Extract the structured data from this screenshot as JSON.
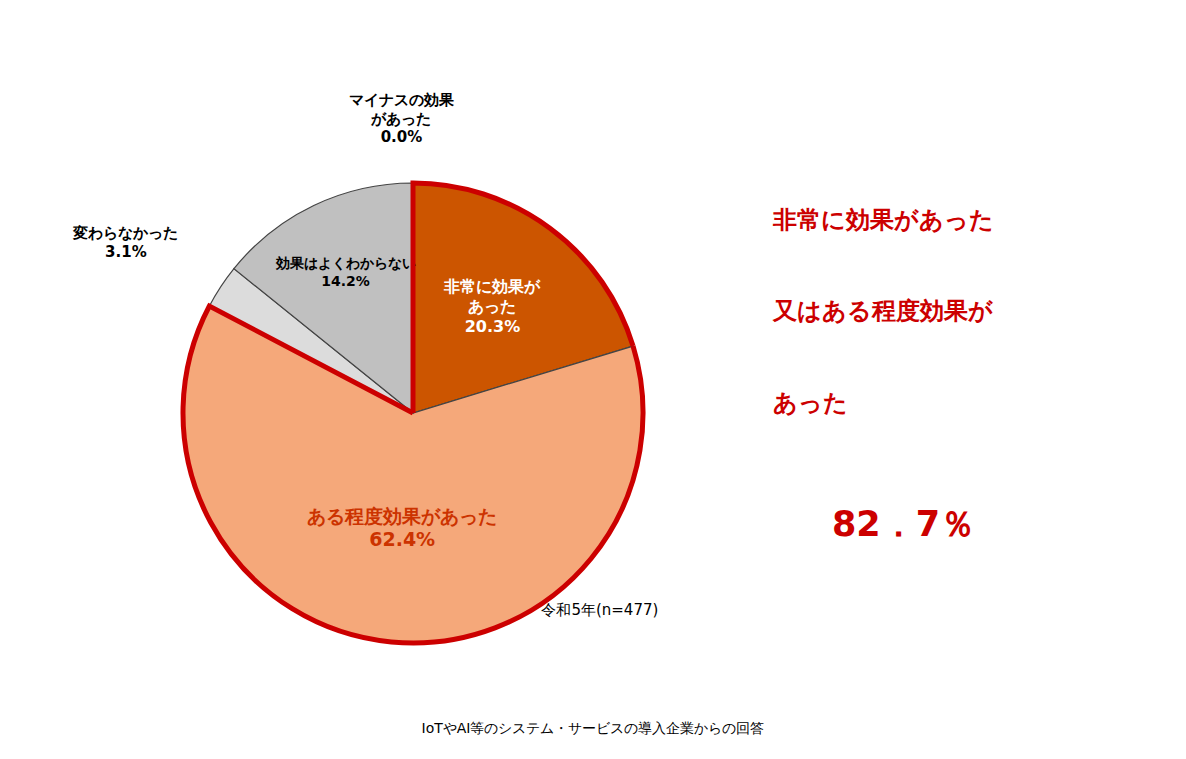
{
  "chart_data": {
    "type": "pie",
    "categories": [
      "非常に効果が\nあった",
      "ある程度効果があった",
      "変わらなかった",
      "効果はよくわからない",
      "マイナスの効果\nがあった"
    ],
    "values": [
      20.3,
      62.4,
      3.1,
      14.2,
      0.001
    ],
    "value_labels": [
      "20.3%",
      "62.4%",
      "3.1%",
      "14.2%",
      "0.0%"
    ],
    "colors": [
      "#CC5500",
      "#F5A87A",
      "#DCDCDC",
      "#C0C0C0",
      "#B0B0B0"
    ],
    "annotations": [
      "令和5年(n=477)",
      "非常に効果があった",
      "又はある程度効果が",
      "あった",
      "82．7％",
      "IoTやAI等のシステム・サービスの導入企業からの回答"
    ]
  }
}
